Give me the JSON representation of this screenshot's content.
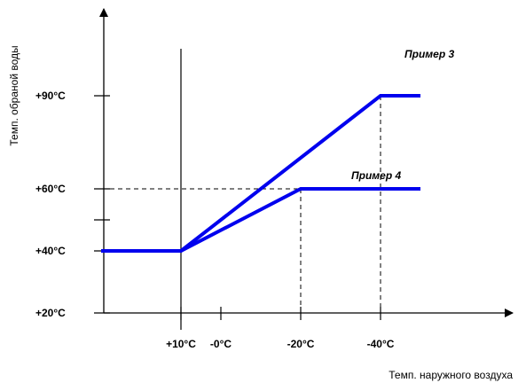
{
  "chart_data": {
    "type": "line",
    "xlabel": "Темп. наружного воздуха",
    "ylabel": "Темп. обраной воды",
    "x_ticks": [
      {
        "value": 10,
        "label": "+10°C"
      },
      {
        "value": 0,
        "label": "-0°C"
      },
      {
        "value": -20,
        "label": "-20°C"
      },
      {
        "value": -40,
        "label": "-40°C"
      }
    ],
    "y_ticks": [
      {
        "value": 20,
        "label": "+20°C"
      },
      {
        "value": 40,
        "label": "+40°C"
      },
      {
        "value": 50,
        "label": ""
      },
      {
        "value": 60,
        "label": "+60°C"
      },
      {
        "value": 90,
        "label": "+90°C"
      }
    ],
    "series": [
      {
        "name": "Пример 3",
        "points": [
          [
            30,
            40
          ],
          [
            10,
            40
          ],
          [
            -40,
            90
          ],
          [
            -50,
            90
          ]
        ]
      },
      {
        "name": "Пример 4",
        "points": [
          [
            30,
            40
          ],
          [
            10,
            40
          ],
          [
            -20,
            60
          ],
          [
            -50,
            60
          ]
        ]
      }
    ],
    "colors": {
      "series": "#0000ee",
      "axis": "#000000"
    }
  }
}
